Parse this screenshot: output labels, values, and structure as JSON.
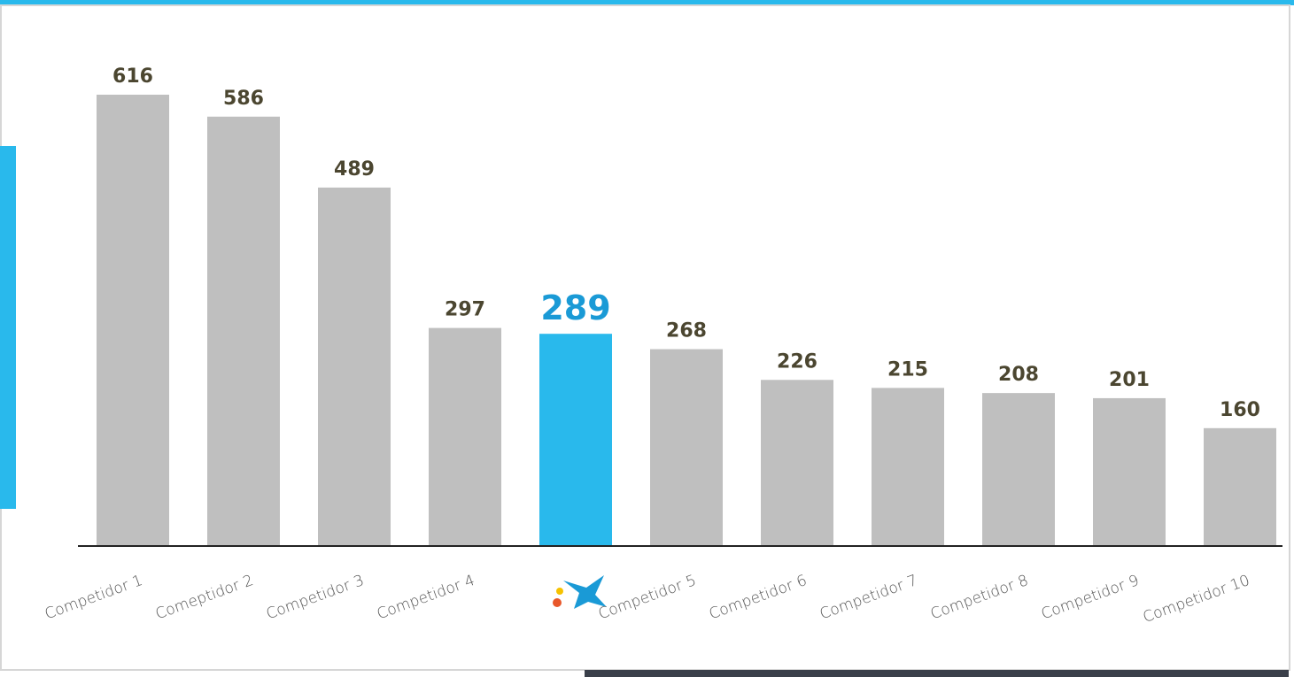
{
  "chart_data": {
    "type": "bar",
    "categories": [
      "Competidor 1",
      "Comeptidor 2",
      "Competidor 3",
      "Competidor 4",
      null,
      "Competidor 5",
      "Competidor 6",
      "Competidor 7",
      "Competidor 8",
      "Competidor 9",
      "Competidor 10"
    ],
    "values": [
      616,
      586,
      489,
      297,
      289,
      268,
      226,
      215,
      208,
      201,
      160
    ],
    "colors": [
      "#bfbfbf",
      "#bfbfbf",
      "#bfbfbf",
      "#bfbfbf",
      "#29b9ec",
      "#bfbfbf",
      "#bfbfbf",
      "#bfbfbf",
      "#bfbfbf",
      "#bfbfbf",
      "#bfbfbf"
    ],
    "label_colors": [
      "#4b4630",
      "#4b4630",
      "#4b4630",
      "#4b4630",
      "#1a9ad6",
      "#4b4630",
      "#4b4630",
      "#4b4630",
      "#4b4630",
      "#4b4630",
      "#4b4630"
    ]
  }
}
